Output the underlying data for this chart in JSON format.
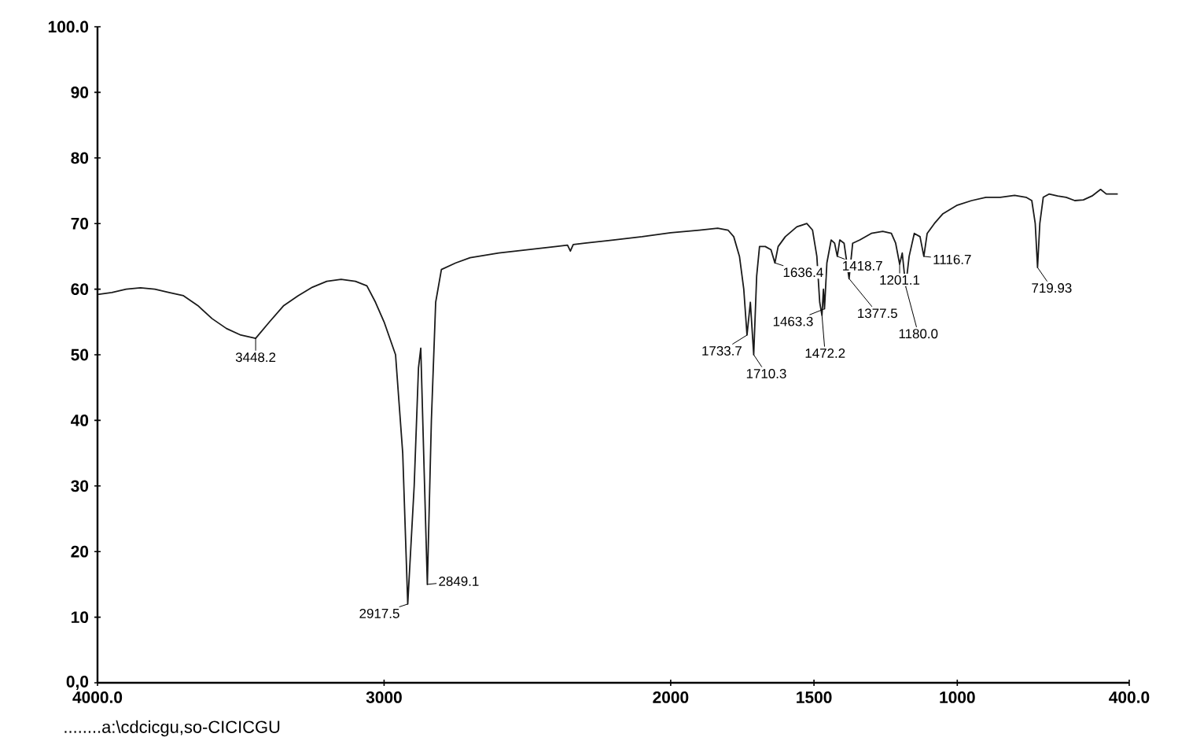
{
  "chart_data": {
    "type": "line",
    "x": [
      4000,
      3950,
      3900,
      3850,
      3800,
      3750,
      3700,
      3650,
      3600,
      3550,
      3500,
      3448.2,
      3400,
      3350,
      3300,
      3250,
      3200,
      3150,
      3100,
      3060,
      3030,
      3000,
      2960,
      2935,
      2917.5,
      2895,
      2880,
      2872,
      2860,
      2849.1,
      2835,
      2820,
      2800,
      2750,
      2700,
      2600,
      2500,
      2400,
      2360,
      2350,
      2340,
      2300,
      2200,
      2100,
      2000,
      1900,
      1836,
      1800,
      1780,
      1760,
      1745,
      1733.7,
      1722,
      1710.3,
      1700,
      1690,
      1670,
      1650,
      1636.4,
      1625,
      1600,
      1560,
      1525,
      1505,
      1490,
      1480,
      1472.2,
      1467,
      1463.3,
      1455,
      1440,
      1428,
      1418.7,
      1410,
      1395,
      1377.5,
      1365,
      1340,
      1300,
      1260,
      1230,
      1215,
      1201.1,
      1192,
      1180,
      1168,
      1150,
      1130,
      1116.7,
      1105,
      1080,
      1050,
      1000,
      950,
      900,
      850,
      800,
      760,
      740,
      728,
      719.93,
      712,
      700,
      680,
      650,
      620,
      590,
      560,
      530,
      500,
      480,
      440
    ],
    "series": [
      {
        "color": "#1a1a1a",
        "values": [
          59.2,
          59.5,
          60,
          60.2,
          60,
          59.5,
          59,
          57.5,
          55.5,
          54,
          53,
          52.5,
          55,
          57.5,
          59,
          60.3,
          61.2,
          61.5,
          61.2,
          60.5,
          58,
          55,
          50,
          35,
          12,
          30,
          48,
          51,
          32,
          15,
          40,
          58,
          63,
          64,
          64.8,
          65.5,
          66,
          66.5,
          66.7,
          65.8,
          66.8,
          67,
          67.5,
          68,
          68.6,
          69,
          69.3,
          69,
          68,
          65,
          60,
          53,
          58,
          50,
          62,
          66.5,
          66.5,
          66,
          64,
          66.5,
          68,
          69.5,
          70,
          69,
          65,
          58,
          56,
          60,
          57,
          64,
          67.5,
          67,
          65,
          67.5,
          67,
          61.6,
          67,
          67.5,
          68.5,
          68.8,
          68.5,
          67,
          63.8,
          65.5,
          60.4,
          65,
          68.5,
          68,
          65,
          68.5,
          70,
          71.5,
          72.8,
          73.5,
          74,
          74,
          74.3,
          74,
          73.5,
          70,
          63.3,
          70,
          74,
          74.5,
          74.2,
          74,
          73.5,
          73.6,
          74.2,
          75.2,
          74.5,
          74.5
        ]
      }
    ],
    "xlim": [
      4000,
      400
    ],
    "xticks": [
      {
        "value": 4000,
        "label": "4000.0"
      },
      3000,
      2000,
      1500,
      1000,
      {
        "value": 400,
        "label": "400.0"
      }
    ],
    "ylim": [
      0,
      100
    ],
    "yticks": [
      {
        "value": 0,
        "label": "0,0"
      },
      10,
      20,
      30,
      40,
      50,
      60,
      70,
      80,
      90,
      {
        "value": 100,
        "label": "100.0"
      }
    ],
    "annotations": [
      {
        "text": "3448.2",
        "x": 3448.2,
        "y": 52.5
      },
      {
        "text": "2917.5",
        "x": 2917.5,
        "y": 12
      },
      {
        "text": "2849.1",
        "x": 2849.1,
        "y": 15
      },
      {
        "text": "1733.7",
        "x": 1733.7,
        "y": 53
      },
      {
        "text": "1710.3",
        "x": 1710.3,
        "y": 50
      },
      {
        "text": "1636.4",
        "x": 1636.4,
        "y": 64
      },
      {
        "text": "1463.3",
        "x": 1463.3,
        "y": 57
      },
      {
        "text": "1472.2",
        "x": 1472.2,
        "y": 56
      },
      {
        "text": "1418.7",
        "x": 1418.7,
        "y": 65
      },
      {
        "text": "1377.5",
        "x": 1377.5,
        "y": 61.6
      },
      {
        "text": "1201.1",
        "x": 1201.1,
        "y": 63.8
      },
      {
        "text": "1180.0",
        "x": 1180,
        "y": 60.4
      },
      {
        "text": "1116.7",
        "x": 1116.7,
        "y": 65
      },
      {
        "text": "719.93",
        "x": 719.93,
        "y": 63.3
      },
      "........a:\\cdcicgu,so-CICICGU"
    ]
  }
}
